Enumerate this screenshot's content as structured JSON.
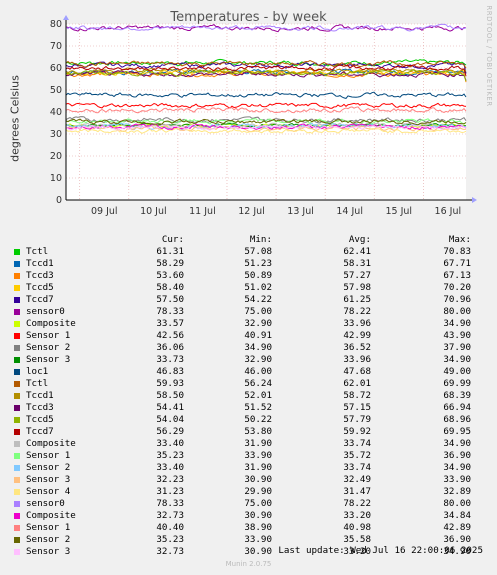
{
  "title": "Temperatures - by week",
  "ylabel": "degrees Celsius",
  "side_text": "RRDTOOL / TOBI OETIKER",
  "footer": "Last update: Wed Jul 16 22:00:06 2025",
  "version": "Munin 2.0.75",
  "legend_headers": {
    "cur": "Cur:",
    "min": "Min:",
    "avg": "Avg:",
    "max": "Max:"
  },
  "chart_data": {
    "type": "line",
    "title": "Temperatures - by week",
    "ylabel": "degrees Celsius",
    "ylim": [
      0,
      80
    ],
    "yticks": [
      "0",
      "10",
      "20",
      "30",
      "40",
      "50",
      "60",
      "70",
      "80"
    ],
    "x_labels": [
      "09 Jul",
      "10 Jul",
      "11 Jul",
      "12 Jul",
      "13 Jul",
      "14 Jul",
      "15 Jul",
      "16 Jul"
    ],
    "grid": true,
    "series": [
      {
        "name": "Tctl",
        "color": "#00cc00",
        "cur": "61.31",
        "min": "57.08",
        "avg": "62.41",
        "max": "70.83"
      },
      {
        "name": "Tccd1",
        "color": "#0066b3",
        "cur": "58.29",
        "min": "51.23",
        "avg": "58.31",
        "max": "67.71"
      },
      {
        "name": "Tccd3",
        "color": "#ff8000",
        "cur": "53.60",
        "min": "50.89",
        "avg": "57.27",
        "max": "67.13"
      },
      {
        "name": "Tccd5",
        "color": "#ffcc00",
        "cur": "58.40",
        "min": "51.02",
        "avg": "57.98",
        "max": "70.20"
      },
      {
        "name": "Tccd7",
        "color": "#330099",
        "cur": "57.50",
        "min": "54.22",
        "avg": "61.25",
        "max": "70.96"
      },
      {
        "name": "sensor0",
        "color": "#990099",
        "cur": "78.33",
        "min": "75.00",
        "avg": "78.22",
        "max": "80.00"
      },
      {
        "name": "Composite",
        "color": "#ccff00",
        "cur": "33.57",
        "min": "32.90",
        "avg": "33.96",
        "max": "34.90"
      },
      {
        "name": "Sensor 1",
        "color": "#ff0000",
        "cur": "42.56",
        "min": "40.91",
        "avg": "42.99",
        "max": "43.90"
      },
      {
        "name": "Sensor 2",
        "color": "#808080",
        "cur": "36.06",
        "min": "34.90",
        "avg": "36.52",
        "max": "37.90"
      },
      {
        "name": "Sensor 3",
        "color": "#008f00",
        "cur": "33.73",
        "min": "32.90",
        "avg": "33.96",
        "max": "34.90"
      },
      {
        "name": "loc1",
        "color": "#00487d",
        "cur": "46.83",
        "min": "46.00",
        "avg": "47.68",
        "max": "49.00"
      },
      {
        "name": "Tctl",
        "color": "#b35a00",
        "cur": "59.93",
        "min": "56.24",
        "avg": "62.01",
        "max": "69.99"
      },
      {
        "name": "Tccd1",
        "color": "#b38f00",
        "cur": "58.50",
        "min": "52.01",
        "avg": "58.72",
        "max": "68.39"
      },
      {
        "name": "Tccd3",
        "color": "#6b006b",
        "cur": "54.41",
        "min": "51.52",
        "avg": "57.15",
        "max": "66.94"
      },
      {
        "name": "Tccd5",
        "color": "#8fb300",
        "cur": "54.04",
        "min": "50.22",
        "avg": "57.79",
        "max": "68.96"
      },
      {
        "name": "Tccd7",
        "color": "#b30000",
        "cur": "56.29",
        "min": "53.80",
        "avg": "59.92",
        "max": "69.95"
      },
      {
        "name": "Composite",
        "color": "#bebebe",
        "cur": "33.40",
        "min": "31.90",
        "avg": "33.74",
        "max": "34.90"
      },
      {
        "name": "Sensor 1",
        "color": "#80ff80",
        "cur": "35.23",
        "min": "33.90",
        "avg": "35.72",
        "max": "36.90"
      },
      {
        "name": "Sensor 2",
        "color": "#80c9ff",
        "cur": "33.40",
        "min": "31.90",
        "avg": "33.74",
        "max": "34.90"
      },
      {
        "name": "Sensor 3",
        "color": "#ffc080",
        "cur": "32.23",
        "min": "30.90",
        "avg": "32.49",
        "max": "33.90"
      },
      {
        "name": "Sensor 4",
        "color": "#ffe680",
        "cur": "31.23",
        "min": "29.90",
        "avg": "31.47",
        "max": "32.89"
      },
      {
        "name": "sensor0",
        "color": "#aa80ff",
        "cur": "78.33",
        "min": "75.00",
        "avg": "78.22",
        "max": "80.00"
      },
      {
        "name": "Composite",
        "color": "#ee00cc",
        "cur": "32.73",
        "min": "30.90",
        "avg": "33.20",
        "max": "34.84"
      },
      {
        "name": "Sensor 1",
        "color": "#ff8080",
        "cur": "40.40",
        "min": "38.90",
        "avg": "40.98",
        "max": "42.89"
      },
      {
        "name": "Sensor 2",
        "color": "#666600",
        "cur": "35.23",
        "min": "33.90",
        "avg": "35.58",
        "max": "36.90"
      },
      {
        "name": "Sensor 3",
        "color": "#ffbfff",
        "cur": "32.73",
        "min": "30.90",
        "avg": "33.20",
        "max": "34.90"
      }
    ]
  }
}
